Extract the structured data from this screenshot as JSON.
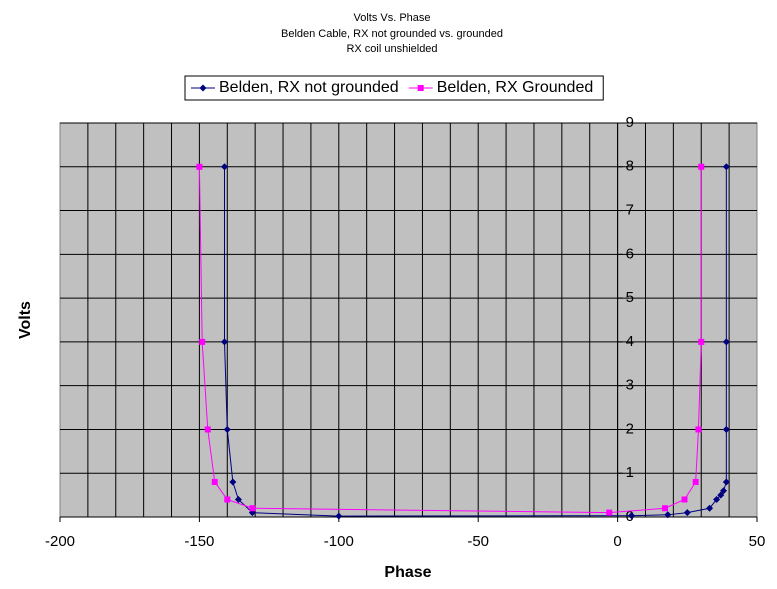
{
  "chart_data": {
    "type": "scatter",
    "title": "Volts Vs. Phase",
    "subtitle": [
      "Belden Cable, RX not grounded vs. grounded",
      "RX coil unshielded"
    ],
    "x_label": "Phase",
    "y_label": "Volts",
    "xlim": [
      -200,
      50
    ],
    "xticks": [
      -200,
      -150,
      -100,
      -50,
      0,
      50
    ],
    "xgrid": [
      -190,
      -180,
      -170,
      -160,
      -150,
      -140,
      -130,
      -120,
      -110,
      -100,
      -90,
      -80,
      -70,
      -60,
      -50,
      -40,
      -30,
      -20,
      -10,
      0,
      10,
      20,
      30,
      40
    ],
    "ylim": [
      0,
      9
    ],
    "yticks": [
      0,
      1,
      2,
      3,
      4,
      5,
      6,
      7,
      8,
      9
    ],
    "grid": true,
    "legend": "top",
    "series": [
      {
        "name": "Belden, RX not grounded",
        "color": "#000080",
        "marker": "diamond",
        "x": [
          -141,
          -141,
          -140,
          -138,
          -136,
          -131,
          -100,
          5,
          18,
          25,
          33,
          35.5,
          37,
          38,
          39,
          39,
          39,
          39
        ],
        "values": [
          8,
          4,
          2,
          0.8,
          0.4,
          0.1,
          0.02,
          0.03,
          0.05,
          0.1,
          0.2,
          0.4,
          0.5,
          0.6,
          0.8,
          2,
          4,
          8
        ]
      },
      {
        "name": "Belden, RX Grounded",
        "color": "#FF00FF",
        "marker": "square",
        "x": [
          -150,
          -149,
          -147,
          -144.5,
          -140,
          -131,
          -3,
          17,
          24,
          28,
          29,
          30,
          30
        ],
        "values": [
          8,
          4,
          2,
          0.8,
          0.4,
          0.2,
          0.1,
          0.2,
          0.4,
          0.8,
          2,
          4,
          8
        ]
      }
    ]
  }
}
